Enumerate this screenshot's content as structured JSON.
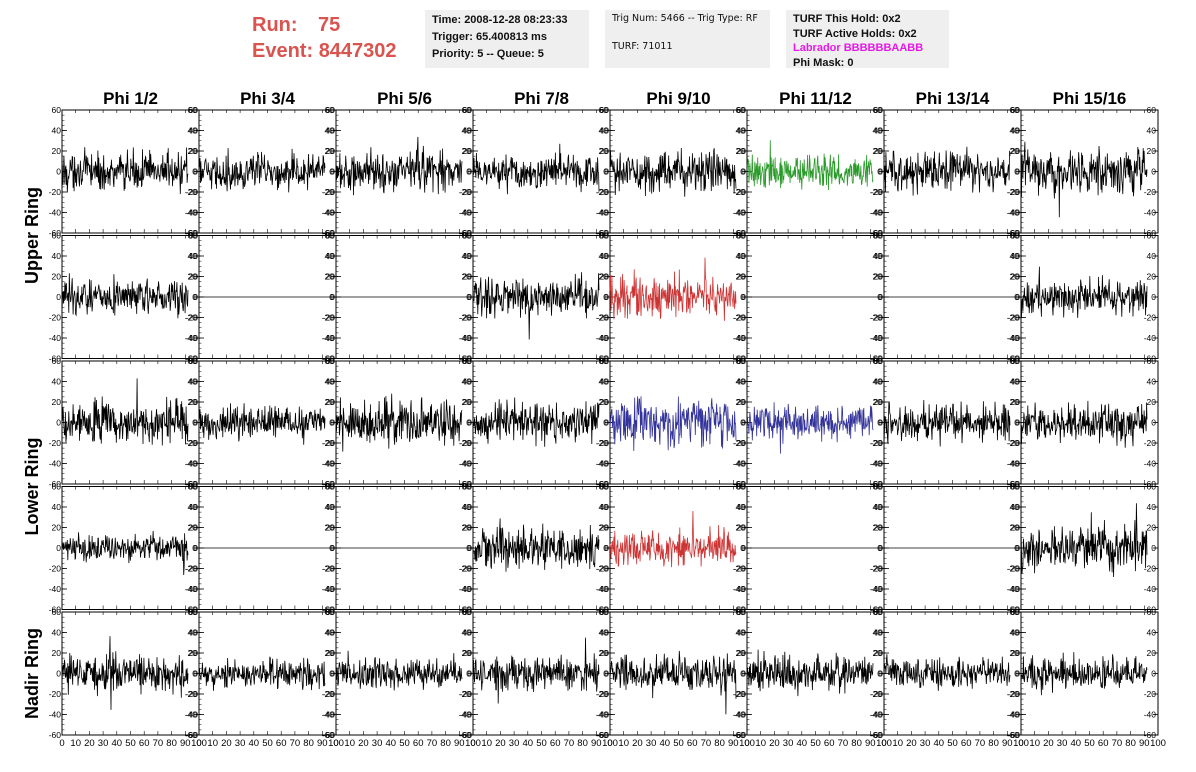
{
  "header": {
    "run_label": "Run:",
    "run_value": "75",
    "event_label": "Event:",
    "event_value": "8447302"
  },
  "info_time": {
    "time": "Time: 2008-12-28 08:23:33",
    "trigger": "Trigger: 65.400813 ms",
    "priority": "Priority: 5 -- Queue: 5"
  },
  "info_trig": {
    "trig": "Trig Num: 5466 -- Trig Type: RF",
    "turf": "TURF: 71011"
  },
  "info_turf": {
    "this_hold": "TURF This Hold: 0x2",
    "active_holds": "TURF Active Holds: 0x2",
    "labrador": "Labrador BBBBBBAABB",
    "phi_mask": "Phi Mask: 0"
  },
  "chart_data": {
    "type": "line",
    "columns": [
      "Phi 1/2",
      "Phi 3/4",
      "Phi 5/6",
      "Phi 7/8",
      "Phi 9/10",
      "Phi 11/12",
      "Phi 13/14",
      "Phi 15/16"
    ],
    "ring_labels": [
      "Upper Ring",
      "Lower Ring",
      "Nadir Ring"
    ],
    "rows": 5,
    "xlim": [
      0,
      100
    ],
    "ylim": [
      -60,
      60
    ],
    "x_ticks": [
      0,
      10,
      20,
      30,
      40,
      50,
      60,
      70,
      80,
      90,
      100
    ],
    "x_tick_labels": [
      "0",
      "10",
      "20",
      "30",
      "40",
      "50",
      "60",
      "70",
      "80",
      "90",
      "100"
    ],
    "y_ticks": [
      -60,
      -40,
      -20,
      0,
      20,
      40,
      60
    ],
    "y_tick_labels": [
      "-60",
      "-40",
      "-20",
      "0",
      "20",
      "40",
      "60"
    ],
    "colors": {
      "normal": "#000000",
      "green": "#2a9a2a",
      "red": "#cc3333",
      "blue": "#333399"
    },
    "cells": [
      {
        "row": 0,
        "col": 0,
        "state": "normal",
        "amp": 14
      },
      {
        "row": 0,
        "col": 1,
        "state": "normal",
        "amp": 13
      },
      {
        "row": 0,
        "col": 2,
        "state": "normal",
        "amp": 15
      },
      {
        "row": 0,
        "col": 3,
        "state": "normal",
        "amp": 13
      },
      {
        "row": 0,
        "col": 4,
        "state": "normal",
        "amp": 15
      },
      {
        "row": 0,
        "col": 5,
        "state": "green",
        "amp": 12
      },
      {
        "row": 0,
        "col": 6,
        "state": "normal",
        "amp": 15
      },
      {
        "row": 0,
        "col": 7,
        "state": "normal",
        "amp": 16
      },
      {
        "row": 1,
        "col": 0,
        "state": "normal",
        "amp": 13
      },
      {
        "row": 1,
        "col": 1,
        "state": "flat",
        "amp": 0
      },
      {
        "row": 1,
        "col": 2,
        "state": "flat",
        "amp": 0
      },
      {
        "row": 1,
        "col": 3,
        "state": "normal",
        "amp": 14
      },
      {
        "row": 1,
        "col": 4,
        "state": "red",
        "amp": 15
      },
      {
        "row": 1,
        "col": 5,
        "state": "flat",
        "amp": 0
      },
      {
        "row": 1,
        "col": 6,
        "state": "flat",
        "amp": 0
      },
      {
        "row": 1,
        "col": 7,
        "state": "normal",
        "amp": 13
      },
      {
        "row": 2,
        "col": 0,
        "state": "normal",
        "amp": 16
      },
      {
        "row": 2,
        "col": 1,
        "state": "normal",
        "amp": 12
      },
      {
        "row": 2,
        "col": 2,
        "state": "normal",
        "amp": 16
      },
      {
        "row": 2,
        "col": 3,
        "state": "normal",
        "amp": 15
      },
      {
        "row": 2,
        "col": 4,
        "state": "blue",
        "amp": 17
      },
      {
        "row": 2,
        "col": 5,
        "state": "blue",
        "amp": 12
      },
      {
        "row": 2,
        "col": 6,
        "state": "normal",
        "amp": 14
      },
      {
        "row": 2,
        "col": 7,
        "state": "normal",
        "amp": 14
      },
      {
        "row": 3,
        "col": 0,
        "state": "normal",
        "amp": 10
      },
      {
        "row": 3,
        "col": 1,
        "state": "flat",
        "amp": 0
      },
      {
        "row": 3,
        "col": 2,
        "state": "flat",
        "amp": 0
      },
      {
        "row": 3,
        "col": 3,
        "state": "normal",
        "amp": 15
      },
      {
        "row": 3,
        "col": 4,
        "state": "red",
        "amp": 13
      },
      {
        "row": 3,
        "col": 5,
        "state": "flat",
        "amp": 0
      },
      {
        "row": 3,
        "col": 6,
        "state": "flat",
        "amp": 0
      },
      {
        "row": 3,
        "col": 7,
        "state": "normal",
        "amp": 17
      },
      {
        "row": 4,
        "col": 0,
        "state": "normal",
        "amp": 14
      },
      {
        "row": 4,
        "col": 1,
        "state": "normal",
        "amp": 11
      },
      {
        "row": 4,
        "col": 2,
        "state": "normal",
        "amp": 12
      },
      {
        "row": 4,
        "col": 3,
        "state": "normal",
        "amp": 12
      },
      {
        "row": 4,
        "col": 4,
        "state": "normal",
        "amp": 12
      },
      {
        "row": 4,
        "col": 5,
        "state": "normal",
        "amp": 13
      },
      {
        "row": 4,
        "col": 6,
        "state": "normal",
        "amp": 12
      },
      {
        "row": 4,
        "col": 7,
        "state": "normal",
        "amp": 12
      }
    ]
  }
}
